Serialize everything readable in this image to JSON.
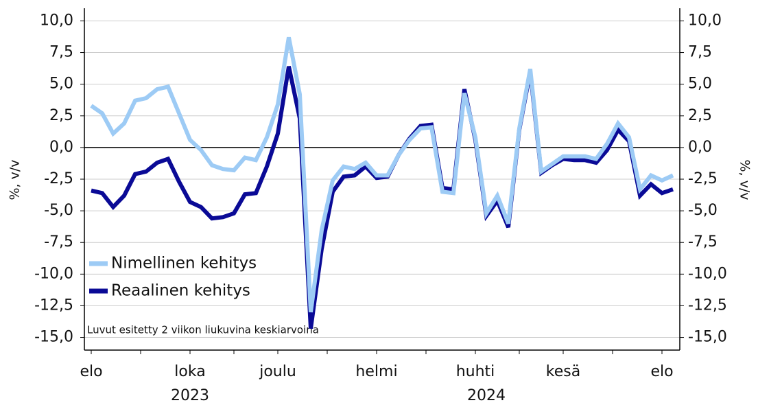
{
  "chart_data": {
    "type": "line",
    "ylabel": "%, v/v",
    "y2label": "%, v/v",
    "note": "Luvut esitetty 2 viikon liukuvina keskiarvoina",
    "categories": [
      "elo",
      null,
      null,
      null,
      null,
      null,
      null,
      null,
      null,
      "loka",
      null,
      null,
      null,
      null,
      null,
      null,
      null,
      "joulu",
      null,
      null,
      null,
      null,
      null,
      null,
      null,
      null,
      "helmi",
      null,
      null,
      null,
      null,
      null,
      null,
      null,
      null,
      "huhti",
      null,
      null,
      null,
      null,
      null,
      null,
      null,
      "kesä",
      null,
      null,
      null,
      null,
      null,
      null,
      null,
      null,
      "elo",
      null
    ],
    "years": [
      null,
      null,
      null,
      null,
      null,
      null,
      null,
      null,
      null,
      "2023",
      null,
      null,
      null,
      null,
      null,
      null,
      null,
      null,
      null,
      null,
      null,
      null,
      null,
      null,
      null,
      null,
      null,
      null,
      null,
      null,
      null,
      null,
      null,
      null,
      null,
      null,
      "2024",
      null,
      null,
      null,
      null,
      null,
      null,
      null,
      null,
      null,
      null,
      null,
      null,
      null,
      null,
      null,
      null,
      null
    ],
    "series": [
      {
        "name": "Nimellinen kehitys",
        "color": "#9dcbf5",
        "values": [
          3.3,
          2.7,
          1.1,
          1.9,
          3.7,
          3.9,
          4.6,
          4.8,
          2.7,
          0.6,
          -0.2,
          -1.4,
          -1.7,
          -1.8,
          -0.8,
          -1.0,
          0.8,
          3.4,
          8.7,
          4.2,
          -13.0,
          -6.5,
          -2.6,
          -1.5,
          -1.7,
          -1.2,
          -2.2,
          -2.2,
          -0.6,
          0.6,
          1.5,
          1.6,
          -3.5,
          -3.6,
          4.3,
          0.8,
          -5.2,
          -3.8,
          -6.0,
          1.5,
          6.2,
          -1.9,
          -1.3,
          -0.7,
          -0.7,
          -0.7,
          -0.9,
          0.3,
          1.9,
          0.8,
          -3.3,
          -2.2,
          -2.6,
          -2.2
        ]
      },
      {
        "name": "Reaalinen kehitys",
        "color": "#0a0a96",
        "values": [
          -3.4,
          -3.6,
          -4.7,
          -3.8,
          -2.1,
          -1.9,
          -1.2,
          -0.9,
          -2.7,
          -4.3,
          -4.7,
          -5.6,
          -5.5,
          -5.2,
          -3.7,
          -3.6,
          -1.5,
          1.1,
          6.4,
          2.3,
          -14.3,
          -8.0,
          -3.5,
          -2.3,
          -2.2,
          -1.5,
          -2.4,
          -2.3,
          -0.6,
          0.7,
          1.7,
          1.8,
          -3.2,
          -3.3,
          4.6,
          0.6,
          -5.4,
          -4.2,
          -6.3,
          1.4,
          6.0,
          -2.0,
          -1.4,
          -0.9,
          -1.0,
          -1.0,
          -1.2,
          -0.2,
          1.4,
          0.5,
          -3.8,
          -2.9,
          -3.6,
          -3.3
        ]
      }
    ],
    "ylim": [
      -16,
      11
    ],
    "yticks": [
      {
        "value": 10,
        "label": "10,0"
      },
      {
        "value": 7.5,
        "label": "7,5"
      },
      {
        "value": 5,
        "label": "5,0"
      },
      {
        "value": 2.5,
        "label": "2,5"
      },
      {
        "value": 0,
        "label": "0,0"
      },
      {
        "value": -2.5,
        "label": "-2,5"
      },
      {
        "value": -5,
        "label": "-5,0"
      },
      {
        "value": -7.5,
        "label": "-7,5"
      },
      {
        "value": -10,
        "label": "-10,0"
      },
      {
        "value": -12.5,
        "label": "-12,5"
      },
      {
        "value": -15,
        "label": "-15,0"
      }
    ],
    "y2lim": [
      -16,
      11
    ],
    "y2ticks": [
      {
        "value": 10,
        "label": "10,0"
      },
      {
        "value": 7.5,
        "label": "7,5"
      },
      {
        "value": 5,
        "label": "5,0"
      },
      {
        "value": 2.5,
        "label": "2,5"
      },
      {
        "value": 0,
        "label": "0,0"
      },
      {
        "value": -2.5,
        "label": "-2,5"
      },
      {
        "value": -5,
        "label": "-5,0"
      },
      {
        "value": -7.5,
        "label": "-7,5"
      },
      {
        "value": -10,
        "label": "-10,0"
      },
      {
        "value": -12.5,
        "label": "-12,5"
      },
      {
        "value": -15,
        "label": "-15,0"
      }
    ],
    "grid": true,
    "legend": "lower left"
  }
}
